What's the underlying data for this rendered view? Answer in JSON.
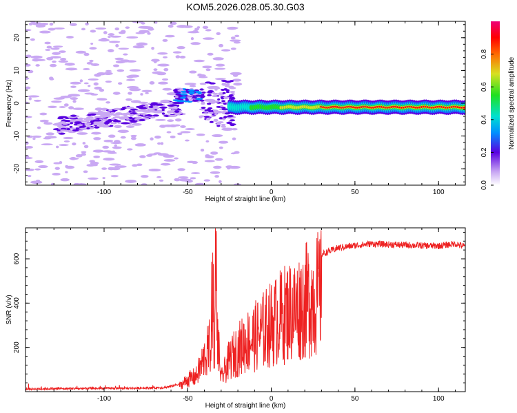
{
  "title": "KOM5.2026.028.05.30.G03",
  "chart_data": [
    {
      "type": "heatmap",
      "xlabel": "Height of straight line (km)",
      "ylabel": "Frequency (Hz)",
      "xlim": [
        -147,
        116
      ],
      "ylim": [
        -25,
        25
      ],
      "xticks": [
        -100,
        -50,
        0,
        50,
        100
      ],
      "yticks": [
        -20,
        -10,
        0,
        10,
        20
      ],
      "xtick_labels": [
        "-100",
        "-50",
        "0",
        "50",
        "100"
      ],
      "ytick_labels": [
        "-20",
        "-10",
        "0",
        "10",
        "20"
      ],
      "colorbar": {
        "label": "Normalized spectral amplitude",
        "range": [
          0,
          1
        ],
        "ticks": [
          0.0,
          0.2,
          0.4,
          0.6,
          0.8
        ],
        "tick_labels": [
          "0.0",
          "0.2",
          "0.4",
          "0.6",
          "0.8"
        ]
      },
      "features": [
        {
          "name": "ridge",
          "x_start": -25,
          "x_end": 116,
          "freq": -1.2,
          "amplitude": 0.9
        },
        {
          "name": "cluster",
          "x_start": -58,
          "x_end": -42,
          "freq": 2.5,
          "amplitude": 0.35
        },
        {
          "name": "noise",
          "x_start": -147,
          "x_end": -60,
          "freq_range": [
            -25,
            25
          ],
          "amplitude": 0.1
        }
      ]
    },
    {
      "type": "line",
      "xlabel": "Height of straight line (km)",
      "ylabel": "SNR (v/v)",
      "xlim": [
        -147,
        116
      ],
      "ylim": [
        0,
        740
      ],
      "xticks": [
        -100,
        -50,
        0,
        50,
        100
      ],
      "yticks": [
        200,
        400,
        600
      ],
      "xtick_labels": [
        "-100",
        "-50",
        "0",
        "50",
        "100"
      ],
      "ytick_labels": [
        "200",
        "400",
        "600"
      ],
      "color": "#ee2222",
      "series": [
        {
          "name": "SNR",
          "x": [
            -147,
            -120,
            -100,
            -80,
            -65,
            -60,
            -55,
            -50,
            -45,
            -40,
            -36,
            -33,
            -30,
            -25,
            -20,
            -15,
            -10,
            -5,
            0,
            5,
            10,
            15,
            20,
            25,
            30,
            40,
            50,
            60,
            70,
            80,
            90,
            100,
            110,
            116
          ],
          "y": [
            12,
            14,
            15,
            16,
            18,
            24,
            35,
            75,
            95,
            210,
            300,
            430,
            80,
            200,
            260,
            310,
            340,
            380,
            420,
            460,
            500,
            510,
            560,
            590,
            620,
            650,
            660,
            668,
            665,
            662,
            660,
            658,
            668,
            655
          ]
        }
      ]
    }
  ]
}
